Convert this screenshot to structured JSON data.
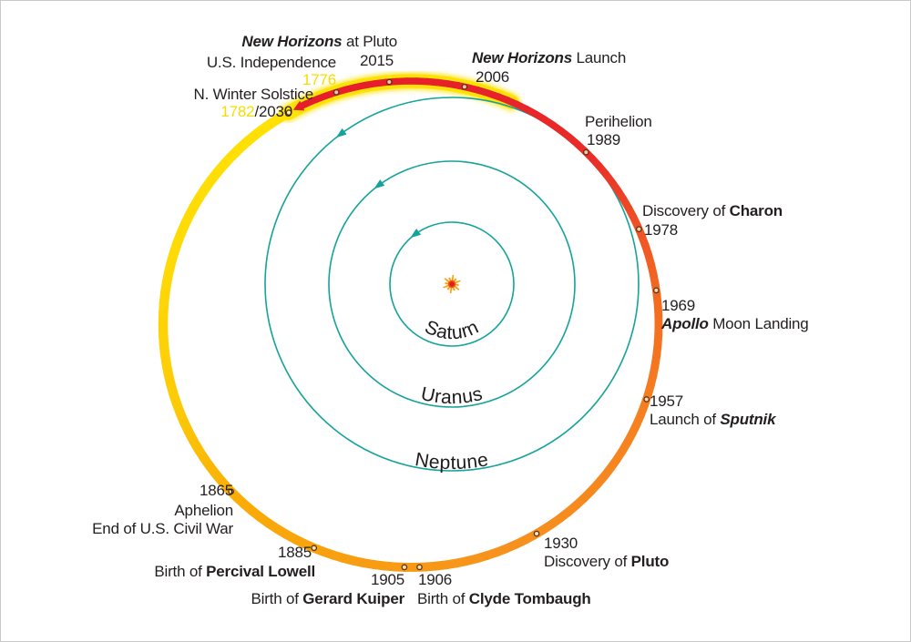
{
  "palette": {
    "teal": "#14a39a",
    "yellow": "#ffe205",
    "amber": "#f9ad05",
    "orange": "#f7911d",
    "deep_orange": "#f26a22",
    "red": "#e61e2b",
    "text": "#231f20",
    "year_highlight": "#f8dc00",
    "marker_ring": "#58320c",
    "sun_core": "#e01f10",
    "sun_rays": "#f89c1a"
  },
  "planets": {
    "saturn": "Saturn",
    "uranus": "Uranus",
    "neptune": "Neptune"
  },
  "events": {
    "us_independence": {
      "label": "U.S. Independence",
      "year": "1776"
    },
    "winter_solstice": {
      "label": "N. Winter Solstice",
      "year": "1782",
      "year_suffix": "/2030"
    },
    "nh_pluto": {
      "name": "New Horizons",
      "suffix": " at Pluto",
      "year": "2015"
    },
    "nh_launch": {
      "name": "New Horizons",
      "suffix": " Launch",
      "year": "2006"
    },
    "perihelion": {
      "label": "Perihelion",
      "year": "1989"
    },
    "charon": {
      "prefix": "Discovery of ",
      "name": "Charon",
      "year": "1978"
    },
    "apollo": {
      "year": "1969",
      "name": "Apollo",
      "suffix": " Moon Landing"
    },
    "sputnik": {
      "year": "1957",
      "prefix": "Launch of ",
      "name": "Sputnik"
    },
    "pluto": {
      "year": "1930",
      "prefix": "Discovery of ",
      "name": "Pluto"
    },
    "tombaugh": {
      "year": "1906",
      "prefix": "Birth of ",
      "name": "Clyde Tombaugh"
    },
    "kuiper": {
      "year": "1905",
      "prefix": "Birth of ",
      "name": "Gerard Kuiper"
    },
    "lowell": {
      "year": "1885",
      "prefix": "Birth of ",
      "name": "Percival Lowell"
    },
    "aphelion": {
      "year": "1865",
      "label": "Aphelion",
      "label2": "End of U.S. Civil War"
    }
  }
}
